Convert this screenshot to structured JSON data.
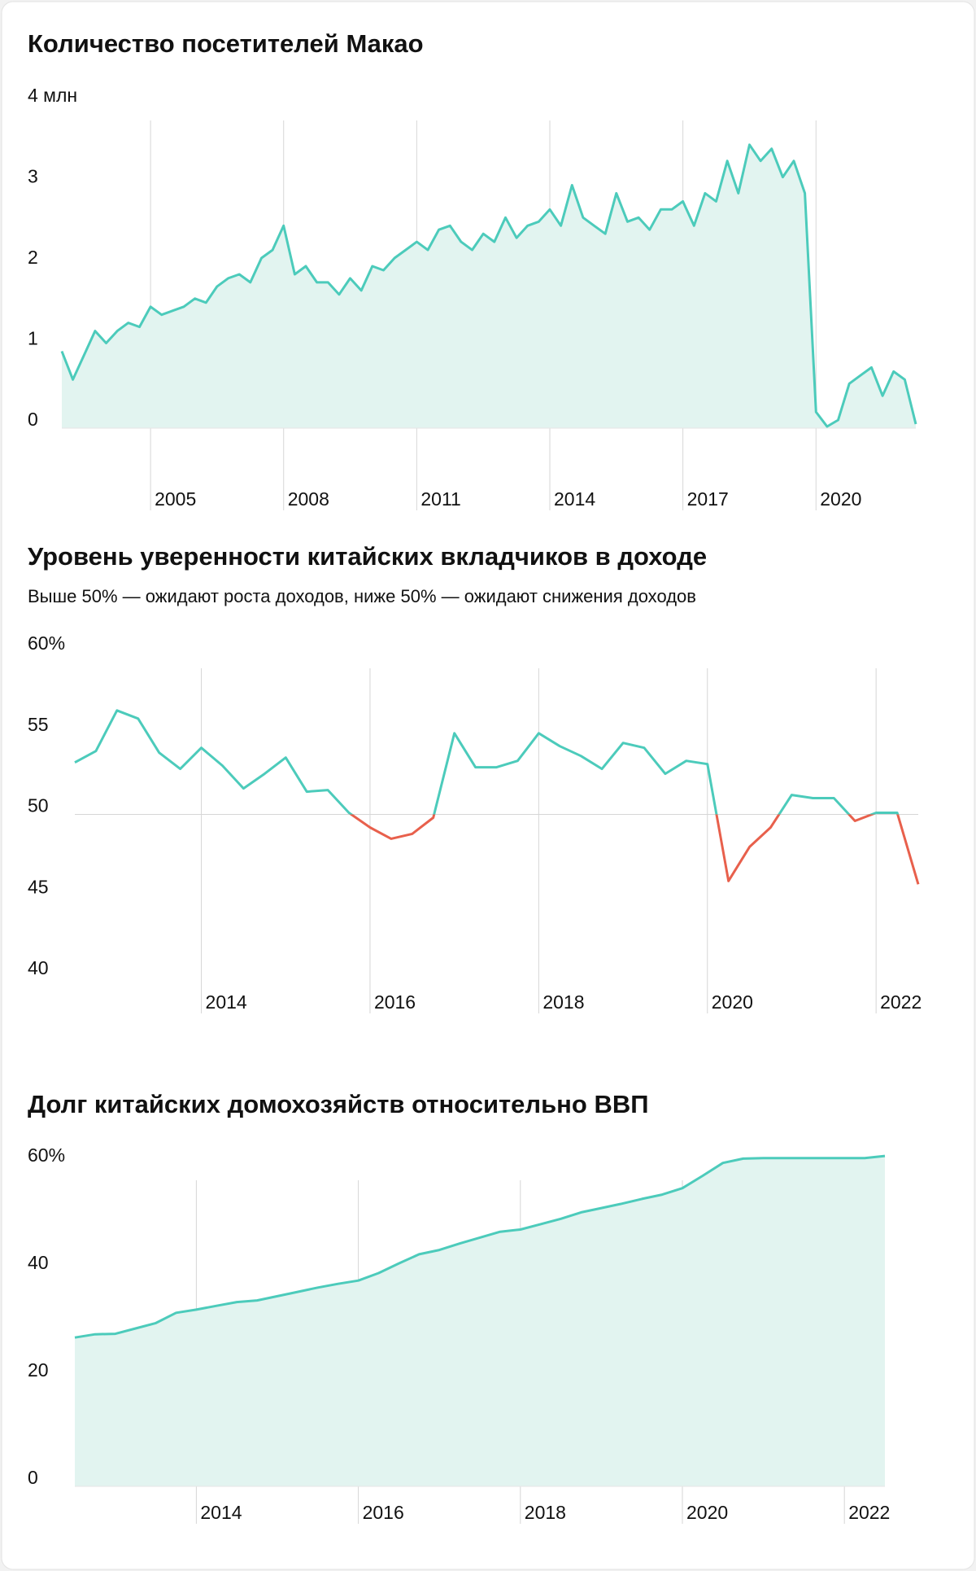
{
  "chart_data": [
    {
      "type": "area",
      "title": "Количество посетителей Макао",
      "x": [
        2003,
        2003.25,
        2003.5,
        2003.75,
        2004,
        2004.25,
        2004.5,
        2004.75,
        2005,
        2005.25,
        2005.5,
        2005.75,
        2006,
        2006.25,
        2006.5,
        2006.75,
        2007,
        2007.25,
        2007.5,
        2007.75,
        2008,
        2008.25,
        2008.5,
        2008.75,
        2009,
        2009.25,
        2009.5,
        2009.75,
        2010,
        2010.25,
        2010.5,
        2010.75,
        2011,
        2011.25,
        2011.5,
        2011.75,
        2012,
        2012.25,
        2012.5,
        2012.75,
        2013,
        2013.25,
        2013.5,
        2013.75,
        2014,
        2014.25,
        2014.5,
        2014.75,
        2015,
        2015.25,
        2015.5,
        2015.75,
        2016,
        2016.25,
        2016.5,
        2016.75,
        2017,
        2017.25,
        2017.5,
        2017.75,
        2018,
        2018.25,
        2018.5,
        2018.75,
        2019,
        2019.25,
        2019.5,
        2019.75,
        2020,
        2020.25,
        2020.5,
        2020.75,
        2021,
        2021.25,
        2021.5,
        2021.75,
        2022,
        2022.25
      ],
      "series": [
        {
          "color": "#4ccbbb",
          "fill": "#e2f4f0",
          "values": [
            0.95,
            0.6,
            0.9,
            1.2,
            1.05,
            1.2,
            1.3,
            1.25,
            1.5,
            1.4,
            1.45,
            1.5,
            1.6,
            1.55,
            1.75,
            1.85,
            1.9,
            1.8,
            2.1,
            2.2,
            2.5,
            1.9,
            2.0,
            1.8,
            1.8,
            1.65,
            1.85,
            1.7,
            2.0,
            1.95,
            2.1,
            2.2,
            2.3,
            2.2,
            2.45,
            2.5,
            2.3,
            2.2,
            2.4,
            2.3,
            2.6,
            2.35,
            2.5,
            2.55,
            2.7,
            2.5,
            3.0,
            2.6,
            2.5,
            2.4,
            2.9,
            2.55,
            2.6,
            2.45,
            2.7,
            2.7,
            2.8,
            2.5,
            2.9,
            2.8,
            3.3,
            2.9,
            3.5,
            3.3,
            3.45,
            3.1,
            3.3,
            2.9,
            0.2,
            0.02,
            0.1,
            0.55,
            0.65,
            0.75,
            0.4,
            0.7,
            0.6,
            0.05
          ]
        }
      ],
      "xlim": [
        2003,
        2022.25
      ],
      "xticks": [
        2005,
        2008,
        2011,
        2014,
        2017,
        2020
      ],
      "ylim": [
        0,
        4
      ],
      "yticks": [
        0,
        1,
        2,
        3,
        {
          "value": 4,
          "label": "4 млн"
        }
      ]
    },
    {
      "type": "threshold-line",
      "title": "Уровень уверенности китайских вкладчиков в доходе",
      "subtitle": "Выше 50% — ожидают роста доходов, ниже 50% — ожидают снижения доходов",
      "x": [
        2012.5,
        2012.75,
        2013,
        2013.25,
        2013.5,
        2013.75,
        2014,
        2014.25,
        2014.5,
        2014.75,
        2015,
        2015.25,
        2015.5,
        2015.75,
        2016,
        2016.25,
        2016.5,
        2016.75,
        2017,
        2017.25,
        2017.5,
        2017.75,
        2018,
        2018.25,
        2018.5,
        2018.75,
        2019,
        2019.25,
        2019.5,
        2019.75,
        2020,
        2020.25,
        2020.5,
        2020.75,
        2021,
        2021.25,
        2021.5,
        2021.75,
        2022,
        2022.25,
        2022.5
      ],
      "series": [
        {
          "color": "#4ccbbb",
          "below_color": "#e8604c",
          "values": [
            53.2,
            53.9,
            56.4,
            55.9,
            53.8,
            52.8,
            54.1,
            53.0,
            51.6,
            52.5,
            53.5,
            51.4,
            51.5,
            50.1,
            49.2,
            48.5,
            48.8,
            49.8,
            55.0,
            52.9,
            52.9,
            53.3,
            55.0,
            54.2,
            53.6,
            52.8,
            54.4,
            54.1,
            52.5,
            53.3,
            53.1,
            45.9,
            48.0,
            49.2,
            51.2,
            51.0,
            51.0,
            49.6,
            50.1,
            50.1,
            45.7
          ]
        }
      ],
      "threshold": 50,
      "xlim": [
        2012.5,
        2022.5
      ],
      "xticks": [
        2014,
        2016,
        2018,
        2020,
        2022
      ],
      "ylim": [
        40,
        60
      ],
      "yticks": [
        40,
        45,
        50,
        55,
        {
          "value": 60,
          "label": "60%"
        }
      ]
    },
    {
      "type": "area",
      "title": "Долг китайских домохозяйств относительно ВВП",
      "x": [
        2012.5,
        2012.75,
        2013,
        2013.25,
        2013.5,
        2013.75,
        2014,
        2014.25,
        2014.5,
        2014.75,
        2015,
        2015.25,
        2015.5,
        2015.75,
        2016,
        2016.25,
        2016.5,
        2016.75,
        2017,
        2017.25,
        2017.5,
        2017.75,
        2018,
        2018.25,
        2018.5,
        2018.75,
        2019,
        2019.25,
        2019.5,
        2019.75,
        2020,
        2020.25,
        2020.5,
        2020.75,
        2021,
        2021.25,
        2021.5,
        2021.75,
        2022,
        2022.25,
        2022.5
      ],
      "series": [
        {
          "color": "#4ccbbb",
          "fill": "#e2f4f0",
          "values": [
            27.7,
            28.3,
            28.4,
            29.4,
            30.4,
            32.3,
            32.9,
            33.6,
            34.3,
            34.6,
            35.4,
            36.2,
            37.0,
            37.7,
            38.3,
            39.7,
            41.5,
            43.2,
            44.0,
            45.2,
            46.3,
            47.4,
            47.8,
            48.8,
            49.8,
            51.0,
            51.8,
            52.6,
            53.5,
            54.3,
            55.5,
            57.8,
            60.2,
            61.0,
            61.1,
            61.1,
            61.1,
            61.1,
            61.1,
            61.1,
            61.5
          ]
        }
      ],
      "xlim": [
        2012.5,
        2022.5
      ],
      "xticks": [
        2014,
        2016,
        2018,
        2020,
        2022
      ],
      "ylim": [
        0,
        60
      ],
      "yticks": [
        0,
        20,
        40,
        {
          "value": 60,
          "label": "60%"
        }
      ]
    }
  ]
}
